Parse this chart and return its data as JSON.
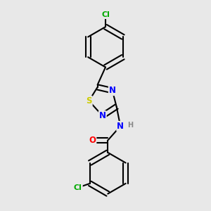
{
  "background_color": "#e8e8e8",
  "bond_color": "#000000",
  "atom_colors": {
    "S": "#cccc00",
    "N": "#0000ff",
    "O": "#ff0000",
    "Cl": "#00aa00",
    "H": "#888888",
    "C": "#000000"
  },
  "line_width": 1.5,
  "font_size": 8.5,
  "figsize": [
    3.0,
    3.0
  ],
  "dpi": 100
}
